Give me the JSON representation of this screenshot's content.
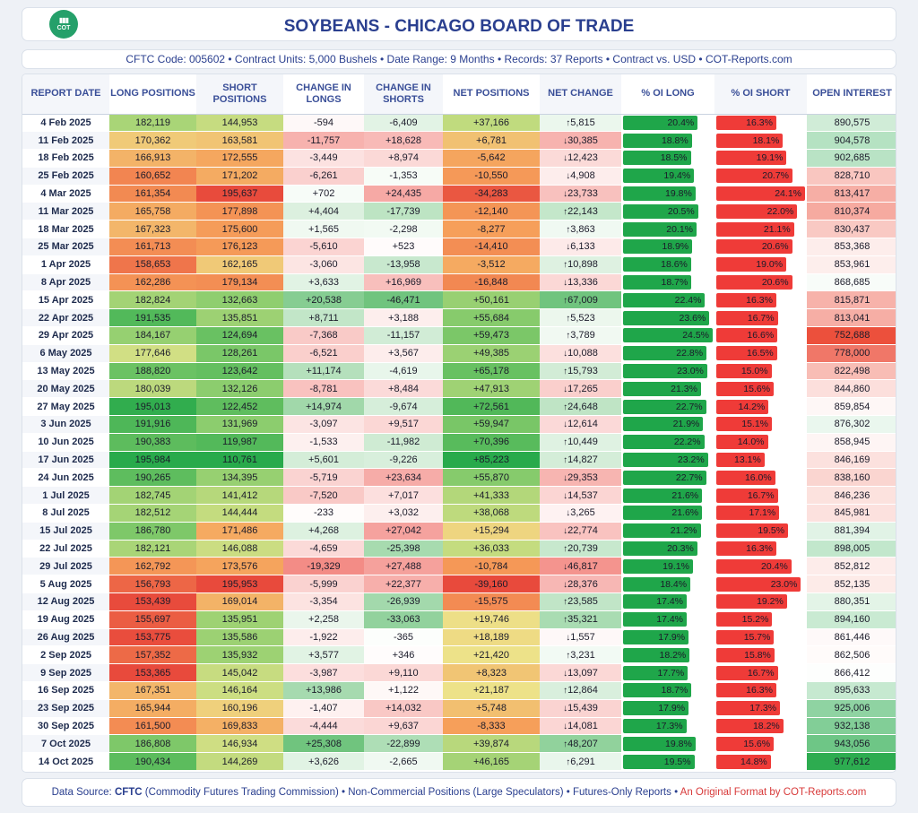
{
  "header": {
    "title": "SOYBEANS - CHICAGO BOARD OF TRADE",
    "logo_text": "COT"
  },
  "subtitle": "CFTC Code: 005602 • Contract Units: 5,000 Bushels • Date Range: 9 Months • Records: 37 Reports • Contract vs. USD • COT-Reports.com",
  "footer": {
    "lead": "Data Source: ",
    "source": "CFTC",
    "rest": " (Commodity Futures Trading Commission) • Non-Commercial Positions (Large Speculators) • Futures-Only Reports • ",
    "credit": "An Original Format by COT-Reports.com"
  },
  "colors": {
    "long_bar": "#1fa64a",
    "short_bar": "#ef3b38",
    "title": "#2a3f8f"
  },
  "chart_data": {
    "type": "table",
    "title": "SOYBEANS - CHICAGO BOARD OF TRADE",
    "columns": [
      "REPORT DATE",
      "LONG POSITIONS",
      "SHORT POSITIONS",
      "CHANGE IN LONGS",
      "CHANGE IN SHORTS",
      "NET POSITIONS",
      "NET CHANGE",
      "% OI LONG",
      "% OI SHORT",
      "OPEN INTEREST"
    ],
    "rows": [
      {
        "date": "4 Feb 2025",
        "long": "182,119",
        "short": "144,953",
        "chg_long": "-594",
        "chg_short": "-6,409",
        "net": "+37,166",
        "net_chg": "+5,815",
        "pct_long": "20.4%",
        "pct_short": "16.3%",
        "oi": "890,575"
      },
      {
        "date": "11 Feb 2025",
        "long": "170,362",
        "short": "163,581",
        "chg_long": "-11,757",
        "chg_short": "+18,628",
        "net": "+6,781",
        "net_chg": "-30,385",
        "pct_long": "18.8%",
        "pct_short": "18.1%",
        "oi": "904,578"
      },
      {
        "date": "18 Feb 2025",
        "long": "166,913",
        "short": "172,555",
        "chg_long": "-3,449",
        "chg_short": "+8,974",
        "net": "-5,642",
        "net_chg": "-12,423",
        "pct_long": "18.5%",
        "pct_short": "19.1%",
        "oi": "902,685"
      },
      {
        "date": "25 Feb 2025",
        "long": "160,652",
        "short": "171,202",
        "chg_long": "-6,261",
        "chg_short": "-1,353",
        "net": "-10,550",
        "net_chg": "-4,908",
        "pct_long": "19.4%",
        "pct_short": "20.7%",
        "oi": "828,710"
      },
      {
        "date": "4 Mar 2025",
        "long": "161,354",
        "short": "195,637",
        "chg_long": "+702",
        "chg_short": "+24,435",
        "net": "-34,283",
        "net_chg": "-23,733",
        "pct_long": "19.8%",
        "pct_short": "24.1%",
        "oi": "813,417"
      },
      {
        "date": "11 Mar 2025",
        "long": "165,758",
        "short": "177,898",
        "chg_long": "+4,404",
        "chg_short": "-17,739",
        "net": "-12,140",
        "net_chg": "+22,143",
        "pct_long": "20.5%",
        "pct_short": "22.0%",
        "oi": "810,374"
      },
      {
        "date": "18 Mar 2025",
        "long": "167,323",
        "short": "175,600",
        "chg_long": "+1,565",
        "chg_short": "-2,298",
        "net": "-8,277",
        "net_chg": "+3,863",
        "pct_long": "20.1%",
        "pct_short": "21.1%",
        "oi": "830,437"
      },
      {
        "date": "25 Mar 2025",
        "long": "161,713",
        "short": "176,123",
        "chg_long": "-5,610",
        "chg_short": "+523",
        "net": "-14,410",
        "net_chg": "-6,133",
        "pct_long": "18.9%",
        "pct_short": "20.6%",
        "oi": "853,368"
      },
      {
        "date": "1 Apr 2025",
        "long": "158,653",
        "short": "162,165",
        "chg_long": "-3,060",
        "chg_short": "-13,958",
        "net": "-3,512",
        "net_chg": "+10,898",
        "pct_long": "18.6%",
        "pct_short": "19.0%",
        "oi": "853,961"
      },
      {
        "date": "8 Apr 2025",
        "long": "162,286",
        "short": "179,134",
        "chg_long": "+3,633",
        "chg_short": "+16,969",
        "net": "-16,848",
        "net_chg": "-13,336",
        "pct_long": "18.7%",
        "pct_short": "20.6%",
        "oi": "868,685"
      },
      {
        "date": "15 Apr 2025",
        "long": "182,824",
        "short": "132,663",
        "chg_long": "+20,538",
        "chg_short": "-46,471",
        "net": "+50,161",
        "net_chg": "+67,009",
        "pct_long": "22.4%",
        "pct_short": "16.3%",
        "oi": "815,871"
      },
      {
        "date": "22 Apr 2025",
        "long": "191,535",
        "short": "135,851",
        "chg_long": "+8,711",
        "chg_short": "+3,188",
        "net": "+55,684",
        "net_chg": "+5,523",
        "pct_long": "23.6%",
        "pct_short": "16.7%",
        "oi": "813,041"
      },
      {
        "date": "29 Apr 2025",
        "long": "184,167",
        "short": "124,694",
        "chg_long": "-7,368",
        "chg_short": "-11,157",
        "net": "+59,473",
        "net_chg": "+3,789",
        "pct_long": "24.5%",
        "pct_short": "16.6%",
        "oi": "752,688"
      },
      {
        "date": "6 May 2025",
        "long": "177,646",
        "short": "128,261",
        "chg_long": "-6,521",
        "chg_short": "+3,567",
        "net": "+49,385",
        "net_chg": "-10,088",
        "pct_long": "22.8%",
        "pct_short": "16.5%",
        "oi": "778,000"
      },
      {
        "date": "13 May 2025",
        "long": "188,820",
        "short": "123,642",
        "chg_long": "+11,174",
        "chg_short": "-4,619",
        "net": "+65,178",
        "net_chg": "+15,793",
        "pct_long": "23.0%",
        "pct_short": "15.0%",
        "oi": "822,498"
      },
      {
        "date": "20 May 2025",
        "long": "180,039",
        "short": "132,126",
        "chg_long": "-8,781",
        "chg_short": "+8,484",
        "net": "+47,913",
        "net_chg": "-17,265",
        "pct_long": "21.3%",
        "pct_short": "15.6%",
        "oi": "844,860"
      },
      {
        "date": "27 May 2025",
        "long": "195,013",
        "short": "122,452",
        "chg_long": "+14,974",
        "chg_short": "-9,674",
        "net": "+72,561",
        "net_chg": "+24,648",
        "pct_long": "22.7%",
        "pct_short": "14.2%",
        "oi": "859,854"
      },
      {
        "date": "3 Jun 2025",
        "long": "191,916",
        "short": "131,969",
        "chg_long": "-3,097",
        "chg_short": "+9,517",
        "net": "+59,947",
        "net_chg": "-12,614",
        "pct_long": "21.9%",
        "pct_short": "15.1%",
        "oi": "876,302"
      },
      {
        "date": "10 Jun 2025",
        "long": "190,383",
        "short": "119,987",
        "chg_long": "-1,533",
        "chg_short": "-11,982",
        "net": "+70,396",
        "net_chg": "+10,449",
        "pct_long": "22.2%",
        "pct_short": "14.0%",
        "oi": "858,945"
      },
      {
        "date": "17 Jun 2025",
        "long": "195,984",
        "short": "110,761",
        "chg_long": "+5,601",
        "chg_short": "-9,226",
        "net": "+85,223",
        "net_chg": "+14,827",
        "pct_long": "23.2%",
        "pct_short": "13.1%",
        "oi": "846,169"
      },
      {
        "date": "24 Jun 2025",
        "long": "190,265",
        "short": "134,395",
        "chg_long": "-5,719",
        "chg_short": "+23,634",
        "net": "+55,870",
        "net_chg": "-29,353",
        "pct_long": "22.7%",
        "pct_short": "16.0%",
        "oi": "838,160"
      },
      {
        "date": "1 Jul 2025",
        "long": "182,745",
        "short": "141,412",
        "chg_long": "-7,520",
        "chg_short": "+7,017",
        "net": "+41,333",
        "net_chg": "-14,537",
        "pct_long": "21.6%",
        "pct_short": "16.7%",
        "oi": "846,236"
      },
      {
        "date": "8 Jul 2025",
        "long": "182,512",
        "short": "144,444",
        "chg_long": "-233",
        "chg_short": "+3,032",
        "net": "+38,068",
        "net_chg": "-3,265",
        "pct_long": "21.6%",
        "pct_short": "17.1%",
        "oi": "845,981"
      },
      {
        "date": "15 Jul 2025",
        "long": "186,780",
        "short": "171,486",
        "chg_long": "+4,268",
        "chg_short": "+27,042",
        "net": "+15,294",
        "net_chg": "-22,774",
        "pct_long": "21.2%",
        "pct_short": "19.5%",
        "oi": "881,394"
      },
      {
        "date": "22 Jul 2025",
        "long": "182,121",
        "short": "146,088",
        "chg_long": "-4,659",
        "chg_short": "-25,398",
        "net": "+36,033",
        "net_chg": "+20,739",
        "pct_long": "20.3%",
        "pct_short": "16.3%",
        "oi": "898,005"
      },
      {
        "date": "29 Jul 2025",
        "long": "162,792",
        "short": "173,576",
        "chg_long": "-19,329",
        "chg_short": "+27,488",
        "net": "-10,784",
        "net_chg": "-46,817",
        "pct_long": "19.1%",
        "pct_short": "20.4%",
        "oi": "852,812"
      },
      {
        "date": "5 Aug 2025",
        "long": "156,793",
        "short": "195,953",
        "chg_long": "-5,999",
        "chg_short": "+22,377",
        "net": "-39,160",
        "net_chg": "-28,376",
        "pct_long": "18.4%",
        "pct_short": "23.0%",
        "oi": "852,135"
      },
      {
        "date": "12 Aug 2025",
        "long": "153,439",
        "short": "169,014",
        "chg_long": "-3,354",
        "chg_short": "-26,939",
        "net": "-15,575",
        "net_chg": "+23,585",
        "pct_long": "17.4%",
        "pct_short": "19.2%",
        "oi": "880,351"
      },
      {
        "date": "19 Aug 2025",
        "long": "155,697",
        "short": "135,951",
        "chg_long": "+2,258",
        "chg_short": "-33,063",
        "net": "+19,746",
        "net_chg": "+35,321",
        "pct_long": "17.4%",
        "pct_short": "15.2%",
        "oi": "894,160"
      },
      {
        "date": "26 Aug 2025",
        "long": "153,775",
        "short": "135,586",
        "chg_long": "-1,922",
        "chg_short": "-365",
        "net": "+18,189",
        "net_chg": "-1,557",
        "pct_long": "17.9%",
        "pct_short": "15.7%",
        "oi": "861,446"
      },
      {
        "date": "2 Sep 2025",
        "long": "157,352",
        "short": "135,932",
        "chg_long": "+3,577",
        "chg_short": "+346",
        "net": "+21,420",
        "net_chg": "+3,231",
        "pct_long": "18.2%",
        "pct_short": "15.8%",
        "oi": "862,506"
      },
      {
        "date": "9 Sep 2025",
        "long": "153,365",
        "short": "145,042",
        "chg_long": "-3,987",
        "chg_short": "+9,110",
        "net": "+8,323",
        "net_chg": "-13,097",
        "pct_long": "17.7%",
        "pct_short": "16.7%",
        "oi": "866,412"
      },
      {
        "date": "16 Sep 2025",
        "long": "167,351",
        "short": "146,164",
        "chg_long": "+13,986",
        "chg_short": "+1,122",
        "net": "+21,187",
        "net_chg": "+12,864",
        "pct_long": "18.7%",
        "pct_short": "16.3%",
        "oi": "895,633"
      },
      {
        "date": "23 Sep 2025",
        "long": "165,944",
        "short": "160,196",
        "chg_long": "-1,407",
        "chg_short": "+14,032",
        "net": "+5,748",
        "net_chg": "-15,439",
        "pct_long": "17.9%",
        "pct_short": "17.3%",
        "oi": "925,006"
      },
      {
        "date": "30 Sep 2025",
        "long": "161,500",
        "short": "169,833",
        "chg_long": "-4,444",
        "chg_short": "+9,637",
        "net": "-8,333",
        "net_chg": "-14,081",
        "pct_long": "17.3%",
        "pct_short": "18.2%",
        "oi": "932,138"
      },
      {
        "date": "7 Oct 2025",
        "long": "186,808",
        "short": "146,934",
        "chg_long": "+25,308",
        "chg_short": "-22,899",
        "net": "+39,874",
        "net_chg": "+48,207",
        "pct_long": "19.8%",
        "pct_short": "15.6%",
        "oi": "943,056"
      },
      {
        "date": "14 Oct 2025",
        "long": "190,434",
        "short": "144,269",
        "chg_long": "+3,626",
        "chg_short": "-2,665",
        "net": "+46,165",
        "net_chg": "+6,291",
        "pct_long": "19.5%",
        "pct_short": "14.8%",
        "oi": "977,612"
      }
    ]
  }
}
